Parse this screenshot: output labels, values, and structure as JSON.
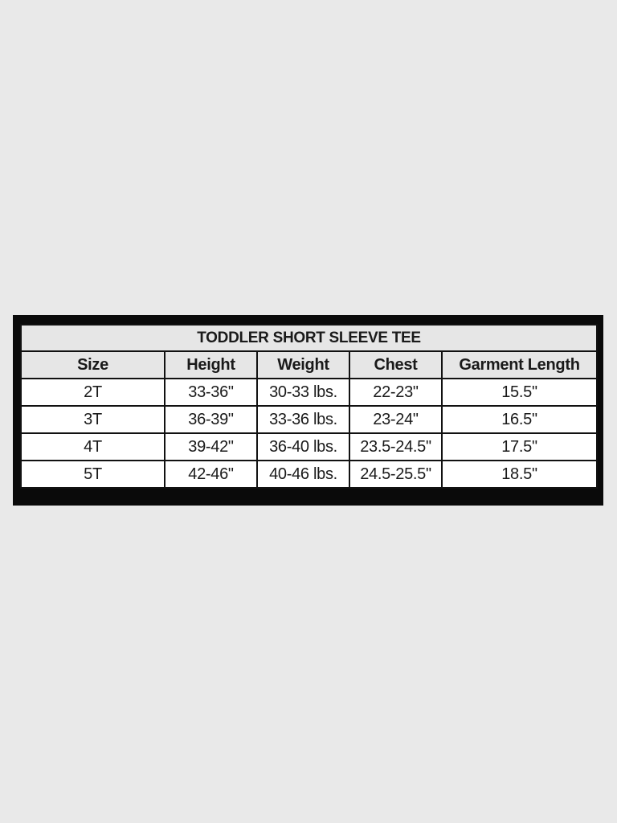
{
  "table": {
    "title": "TODDLER SHORT SLEEVE TEE",
    "headers": [
      "Size",
      "Height",
      "Weight",
      "Chest",
      "Garment Length"
    ],
    "rows": [
      [
        "2T",
        "33-36\"",
        "30-33 lbs.",
        "22-23\"",
        "15.5\""
      ],
      [
        "3T",
        "36-39\"",
        "33-36 lbs.",
        "23-24\"",
        "16.5\""
      ],
      [
        "4T",
        "39-42\"",
        "36-40 lbs.",
        "23.5-24.5\"",
        "17.5\""
      ],
      [
        "5T",
        "42-46\"",
        "40-46 lbs.",
        "24.5-25.5\"",
        "18.5\""
      ]
    ]
  },
  "colors": {
    "background": "#e9e9e9",
    "frame": "#0a0a0a",
    "header_fill": "#e6e6e6",
    "cell_fill": "#ffffff"
  }
}
